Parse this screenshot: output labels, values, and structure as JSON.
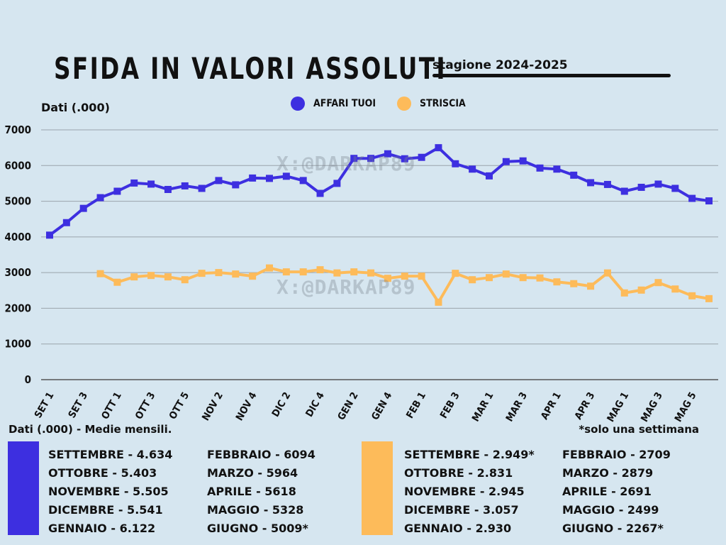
{
  "header": {
    "title": "SFIDA IN VALORI ASSOLUTI",
    "season": "stagione 2024-2025",
    "unit_label": "Dati (.000)",
    "watermark": "X:@DARKAP89"
  },
  "legend": [
    {
      "name": "AFFARI TUOI",
      "color": "#3d2fe0"
    },
    {
      "name": "STRISCIA",
      "color": "#fdbb5a"
    }
  ],
  "chart_data": {
    "type": "line",
    "ylim": [
      0,
      7000
    ],
    "yticks": [
      0,
      1000,
      2000,
      3000,
      4000,
      5000,
      6000,
      7000
    ],
    "grid": true,
    "legend_position": "top-center",
    "xtick_labels": [
      "SET 1",
      "SET 3",
      "OTT 1",
      "OTT 3",
      "OTT 5",
      "NOV 2",
      "NOV 4",
      "DIC 2",
      "DIC 4",
      "GEN 2",
      "GEN 4",
      "FEB 1",
      "FEB 3",
      "MAR 1",
      "MAR 3",
      "APR 1",
      "APR 3",
      "MAG 1",
      "MAG 3",
      "MAG 5"
    ],
    "xtick_positions": [
      0,
      2,
      4,
      6,
      8,
      10,
      12,
      14,
      16,
      18,
      20,
      22,
      24,
      26,
      28,
      30,
      32,
      34,
      36,
      38
    ],
    "series": [
      {
        "name": "AFFARI TUOI",
        "color": "#3d2fe0",
        "values": [
          4050,
          4400,
          4800,
          5100,
          5280,
          5510,
          5480,
          5330,
          5430,
          5360,
          5580,
          5460,
          5650,
          5640,
          5700,
          5580,
          5220,
          5500,
          6200,
          6200,
          6330,
          6190,
          6230,
          6500,
          6050,
          5900,
          5710,
          6110,
          6130,
          5930,
          5900,
          5730,
          5520,
          5470,
          5280,
          5390,
          5480,
          5360,
          5080,
          5010
        ]
      },
      {
        "name": "STRISCIA",
        "color": "#fdbb5a",
        "values": [
          null,
          null,
          null,
          2970,
          2730,
          2880,
          2920,
          2880,
          2800,
          2980,
          3000,
          2960,
          2900,
          3130,
          3020,
          3020,
          3080,
          2990,
          3020,
          2990,
          2840,
          2900,
          2900,
          2170,
          2980,
          2800,
          2860,
          2960,
          2860,
          2850,
          2740,
          2690,
          2620,
          2990,
          2430,
          2510,
          2720,
          2540,
          2350,
          2270
        ]
      }
    ]
  },
  "monthly": {
    "title": "Dati (.000) - Medie mensili.",
    "note": "*solo una settimana",
    "affari_col1": [
      "SETTEMBRE - 4.634",
      "OTTOBRE - 5.403",
      "NOVEMBRE - 5.505",
      "DICEMBRE - 5.541",
      "GENNAIO - 6.122"
    ],
    "affari_col2": [
      "FEBBRAIO - 6094",
      "MARZO - 5964",
      "APRILE - 5618",
      "MAGGIO - 5328",
      "GIUGNO - 5009*"
    ],
    "striscia_col1": [
      "SETTEMBRE - 2.949*",
      "OTTOBRE - 2.831",
      "NOVEMBRE - 2.945",
      "DICEMBRE - 3.057",
      "GENNAIO - 2.930"
    ],
    "striscia_col2": [
      "FEBBRAIO - 2709",
      "MARZO - 2879",
      "APRILE - 2691",
      "MAGGIO - 2499",
      "GIUGNO - 2267*"
    ]
  }
}
